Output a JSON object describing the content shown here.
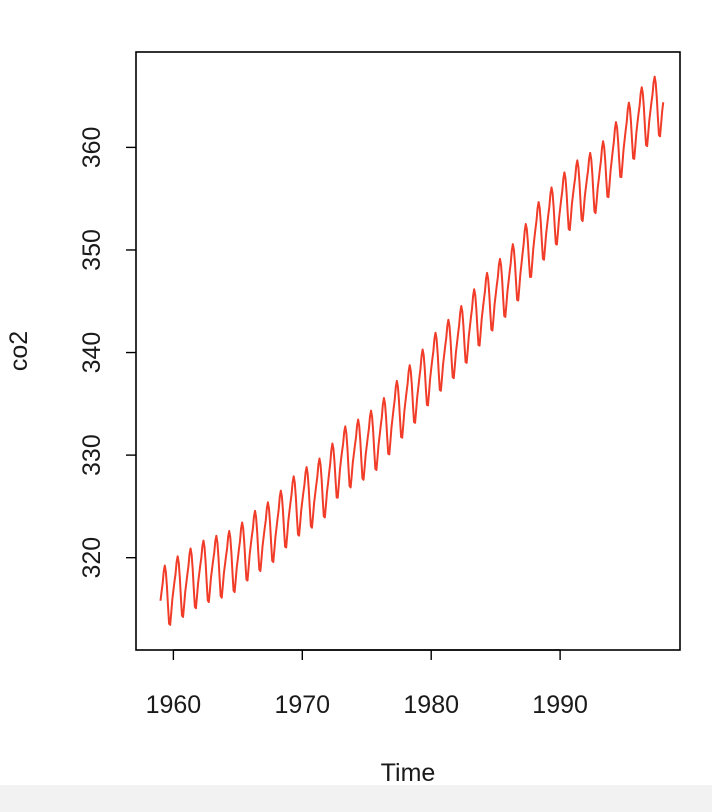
{
  "chart_data": {
    "type": "line",
    "xlabel": "Time",
    "ylabel": "co2",
    "xlim": [
      1957.1,
      1999.3
    ],
    "ylim": [
      311.0,
      369.3
    ],
    "x_ticks": [
      1960,
      1970,
      1980,
      1990
    ],
    "x_tick_labels": [
      "1960",
      "1970",
      "1980",
      "1990"
    ],
    "y_ticks": [
      320,
      330,
      340,
      350,
      360
    ],
    "y_tick_labels": [
      "320",
      "330",
      "340",
      "350",
      "360"
    ],
    "grid": false,
    "legend": "none",
    "series": [
      {
        "color": "#f03c28",
        "x_start": 1959.0,
        "x_end": 1998.0,
        "points_per_year": 12,
        "annual_mean": [
          [
            1959,
            315.9
          ],
          [
            1960,
            316.9
          ],
          [
            1961,
            317.6
          ],
          [
            1962,
            318.5
          ],
          [
            1963,
            319.0
          ],
          [
            1964,
            319.4
          ],
          [
            1965,
            320.0
          ],
          [
            1966,
            321.3
          ],
          [
            1967,
            322.1
          ],
          [
            1968,
            323.0
          ],
          [
            1969,
            324.6
          ],
          [
            1970,
            325.6
          ],
          [
            1971,
            326.3
          ],
          [
            1972,
            327.4
          ],
          [
            1973,
            329.6
          ],
          [
            1974,
            330.2
          ],
          [
            1975,
            331.0
          ],
          [
            1976,
            332.0
          ],
          [
            1977,
            333.7
          ],
          [
            1978,
            335.3
          ],
          [
            1979,
            336.7
          ],
          [
            1980,
            338.5
          ],
          [
            1981,
            339.8
          ],
          [
            1982,
            341.0
          ],
          [
            1983,
            342.6
          ],
          [
            1984,
            344.3
          ],
          [
            1985,
            345.7
          ],
          [
            1986,
            347.0
          ],
          [
            1987,
            348.7
          ],
          [
            1988,
            351.2
          ],
          [
            1989,
            352.6
          ],
          [
            1990,
            354.1
          ],
          [
            1991,
            355.5
          ],
          [
            1992,
            356.2
          ],
          [
            1993,
            357.0
          ],
          [
            1994,
            358.8
          ],
          [
            1995,
            360.8
          ],
          [
            1996,
            362.5
          ],
          [
            1997,
            363.6
          ],
          [
            1998,
            364.5
          ]
        ],
        "seasonal_cycle": [
          -0.1,
          0.7,
          1.4,
          2.5,
          3.0,
          2.3,
          0.8,
          -1.2,
          -3.0,
          -3.2,
          -2.1,
          -0.9
        ]
      }
    ]
  }
}
